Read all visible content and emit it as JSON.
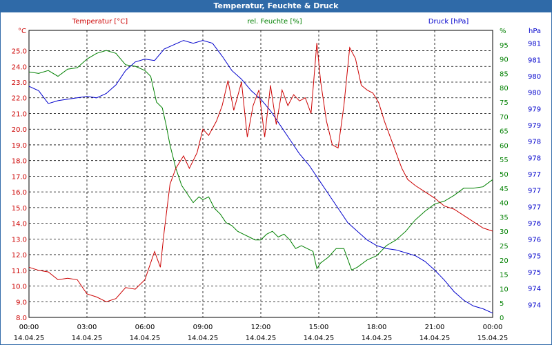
{
  "window": {
    "title": "Temperatur, Feuchte & Druck"
  },
  "colors": {
    "temp": "#cc0000",
    "hum": "#008000",
    "press": "#0000cc",
    "titlebar": "#2f6aa8"
  },
  "chart_data": {
    "type": "line",
    "title": "Temperatur, Feuchte & Druck",
    "x_ticks": [
      {
        "time": "00:00",
        "date": "14.04.25"
      },
      {
        "time": "03:00",
        "date": "14.04.25"
      },
      {
        "time": "06:00",
        "date": "14.04.25"
      },
      {
        "time": "09:00",
        "date": "14.04.25"
      },
      {
        "time": "12:00",
        "date": "14.04.25"
      },
      {
        "time": "15:00",
        "date": "14.04.25"
      },
      {
        "time": "18:00",
        "date": "14.04.25"
      },
      {
        "time": "21:00",
        "date": "14.04.25"
      },
      {
        "time": "00:00",
        "date": "15.04.25"
      }
    ],
    "xlim": [
      0,
      24
    ],
    "axes": {
      "temp": {
        "label": "Temperatur [°C]",
        "unit": "°C",
        "ylim": [
          8.0,
          26.3
        ],
        "ticks": [
          "8.0",
          "9.0",
          "10.0",
          "11.0",
          "12.0",
          "13.0",
          "14.0",
          "15.0",
          "16.0",
          "17.0",
          "18.0",
          "19.0",
          "20.0",
          "21.0",
          "22.0",
          "23.0",
          "24.0",
          "25.0"
        ]
      },
      "hum": {
        "label": "rel. Feuchte [%]",
        "unit": "%",
        "ylim": [
          0,
          100
        ],
        "ticks": [
          "0",
          "5",
          "10",
          "15",
          "20",
          "25",
          "30",
          "35",
          "40",
          "45",
          "50",
          "55",
          "60",
          "65",
          "70",
          "75",
          "80",
          "85",
          "90",
          "95",
          "%"
        ]
      },
      "press": {
        "label": "Druck [hPa]",
        "unit": "hPa",
        "ticks": [
          "974",
          "974",
          "975",
          "975",
          "976",
          "976",
          "977",
          "977",
          "977",
          "978",
          "978",
          "979",
          "979",
          "980",
          "980",
          "981",
          "981"
        ]
      }
    },
    "series": [
      {
        "name": "Temperatur [°C]",
        "axis": "temp",
        "x": [
          0,
          0.5,
          1,
          1.5,
          2,
          2.5,
          3,
          3.5,
          4,
          4.5,
          5,
          5.5,
          6,
          6.5,
          6.8,
          7,
          7.3,
          7.6,
          8,
          8.3,
          8.7,
          9,
          9.3,
          9.7,
          10,
          10.3,
          10.6,
          11,
          11.3,
          11.6,
          11.9,
          12.2,
          12.5,
          12.8,
          13.1,
          13.4,
          13.7,
          14,
          14.3,
          14.6,
          14.9,
          15.1,
          15.4,
          15.7,
          16,
          16.3,
          16.6,
          16.9,
          17.2,
          17.5,
          17.8,
          18.1,
          18.4,
          18.7,
          19,
          19.3,
          19.6,
          20,
          20.5,
          21,
          21.5,
          22,
          22.5,
          23,
          23.5,
          24
        ],
        "values": [
          11.2,
          11.0,
          10.9,
          10.4,
          10.5,
          10.4,
          9.5,
          9.3,
          9.0,
          9.2,
          9.9,
          9.8,
          10.4,
          12.2,
          11.2,
          13.5,
          16.5,
          17.5,
          18.3,
          17.5,
          18.5,
          20.0,
          19.6,
          20.5,
          21.5,
          23.1,
          21.2,
          23.0,
          19.5,
          21.5,
          22.5,
          19.5,
          22.8,
          20.3,
          22.5,
          21.5,
          22.2,
          21.8,
          22.0,
          21.0,
          25.5,
          23.0,
          20.5,
          19.0,
          18.8,
          21.5,
          25.2,
          24.5,
          22.8,
          22.5,
          22.3,
          21.7,
          20.5,
          19.5,
          18.5,
          17.5,
          16.8,
          16.4,
          16.0,
          15.6,
          15.1,
          14.9,
          14.5,
          14.1,
          13.7,
          13.5
        ]
      },
      {
        "name": "rel. Feuchte [%]",
        "axis": "hum",
        "x": [
          0,
          0.5,
          1,
          1.5,
          2,
          2.5,
          3,
          3.5,
          4,
          4.5,
          5,
          5.5,
          6,
          6.3,
          6.6,
          6.9,
          7.1,
          7.3,
          7.6,
          7.9,
          8.2,
          8.5,
          8.8,
          9,
          9.3,
          9.6,
          9.9,
          10.2,
          10.5,
          10.8,
          11.1,
          11.4,
          11.7,
          12,
          12.3,
          12.6,
          12.9,
          13.2,
          13.5,
          13.8,
          14.1,
          14.4,
          14.7,
          14.9,
          15.1,
          15.5,
          15.9,
          16.3,
          16.7,
          17,
          17.5,
          18,
          18.5,
          19,
          19.5,
          20,
          20.5,
          21,
          21.5,
          22,
          22.5,
          23,
          23.5,
          24
        ],
        "values": [
          85.5,
          85,
          86,
          84,
          86.5,
          87,
          90,
          92,
          93,
          92,
          88,
          87.5,
          86,
          84,
          75,
          73,
          67,
          60,
          52,
          46,
          43,
          40,
          42,
          41,
          42,
          38,
          36,
          33,
          32,
          30,
          29,
          28,
          27,
          27,
          29,
          30,
          28,
          29,
          27,
          24,
          25,
          24,
          23,
          17,
          19,
          21,
          24,
          24,
          16.5,
          17.5,
          20,
          21.5,
          25,
          27,
          30,
          34,
          37,
          39.5,
          40.5,
          42.5,
          45,
          45,
          45.5,
          48
        ]
      },
      {
        "name": "Druck [hPa]",
        "axis": "press",
        "x": [
          0,
          0.5,
          1,
          1.5,
          2,
          2.5,
          3,
          3.5,
          4,
          4.5,
          5,
          5.5,
          6,
          6.5,
          7,
          7.5,
          8,
          8.5,
          9,
          9.5,
          10,
          10.5,
          11,
          11.5,
          12,
          12.5,
          13,
          13.5,
          14,
          14.5,
          15,
          15.5,
          16,
          16.5,
          17,
          17.5,
          18,
          18.5,
          19,
          19.5,
          20,
          20.5,
          21,
          21.5,
          22,
          22.5,
          23,
          23.5,
          24
        ],
        "y_pct": [
          80.5,
          79,
          74.5,
          75.5,
          76,
          76.5,
          77,
          76.5,
          78,
          81,
          86,
          89,
          90,
          89.5,
          93.5,
          95,
          96.5,
          95.5,
          96.5,
          95.5,
          91,
          86,
          83,
          79,
          76,
          72,
          67,
          62,
          57,
          53,
          48,
          43,
          38,
          33,
          30,
          27,
          25,
          24,
          23.5,
          22.5,
          21.5,
          19.5,
          16.5,
          13,
          9,
          6,
          4,
          3,
          1.5
        ]
      }
    ]
  }
}
